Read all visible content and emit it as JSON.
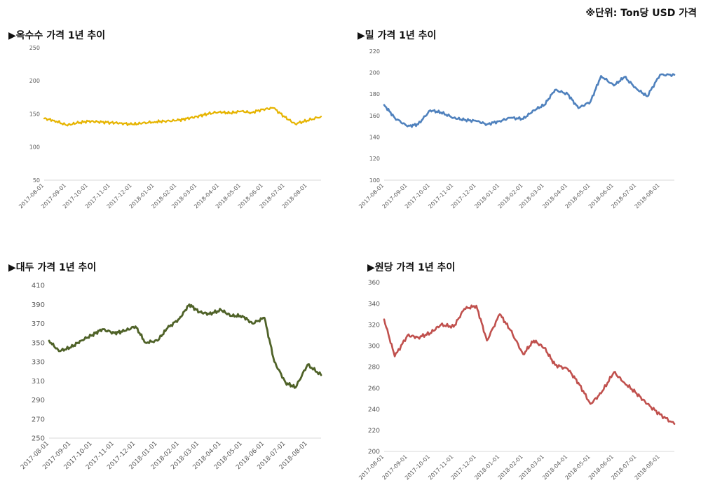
{
  "unit_note": "※단위: Ton당 USD 가격",
  "chart_data": [
    {
      "type": "line",
      "title": "▶옥수수 가격 1년 추이",
      "color": "#e6b400",
      "ylim": [
        50,
        250
      ],
      "yticks": [
        50,
        100,
        150,
        200,
        250
      ],
      "x_start": "2017-08-01",
      "x_end": "2018-08-20",
      "xticks": [
        "2017-08-01",
        "2017-09-01",
        "2017-10-01",
        "2017-11-01",
        "2017-12-01",
        "2018-01-01",
        "2018-02-01",
        "2018-03-01",
        "2018-04-01",
        "2018-05-01",
        "2018-06-01",
        "2018-07-01",
        "2018-08-01"
      ],
      "series": [
        {
          "x": [
            "2017-08-01",
            "2017-08-15",
            "2017-09-01",
            "2017-09-15",
            "2017-10-01",
            "2017-10-15",
            "2017-11-01",
            "2017-11-15",
            "2017-12-01",
            "2017-12-15",
            "2018-01-01",
            "2018-01-15",
            "2018-02-01",
            "2018-02-15",
            "2018-03-01",
            "2018-03-15",
            "2018-04-01",
            "2018-04-15",
            "2018-05-01",
            "2018-05-15",
            "2018-06-01",
            "2018-06-15",
            "2018-07-01",
            "2018-07-15",
            "2018-08-01",
            "2018-08-20"
          ],
          "y": [
            143,
            140,
            133,
            136,
            139,
            138,
            137,
            136,
            134,
            136,
            138,
            139,
            140,
            143,
            146,
            150,
            153,
            151,
            154,
            152,
            157,
            159,
            145,
            135,
            140,
            146
          ]
        }
      ]
    },
    {
      "type": "line",
      "title": "▶밀 가격 1년 추이",
      "color": "#4f81bd",
      "ylim": [
        100,
        220
      ],
      "yticks": [
        100,
        120,
        140,
        160,
        180,
        200,
        220
      ],
      "x_start": "2017-08-01",
      "x_end": "2018-08-20",
      "xticks": [
        "2017-08-01",
        "2017-09-01",
        "2017-10-01",
        "2017-11-01",
        "2017-12-01",
        "2018-01-01",
        "2018-02-01",
        "2018-03-01",
        "2018-04-01",
        "2018-05-01",
        "2018-06-01",
        "2018-07-01",
        "2018-08-01"
      ],
      "series": [
        {
          "x": [
            "2017-08-01",
            "2017-08-15",
            "2017-09-01",
            "2017-09-15",
            "2017-10-01",
            "2017-10-15",
            "2017-11-01",
            "2017-11-15",
            "2017-12-01",
            "2017-12-15",
            "2018-01-01",
            "2018-01-15",
            "2018-02-01",
            "2018-02-15",
            "2018-03-01",
            "2018-03-15",
            "2018-04-01",
            "2018-04-15",
            "2018-05-01",
            "2018-05-15",
            "2018-06-01",
            "2018-06-15",
            "2018-07-01",
            "2018-07-15",
            "2018-08-01",
            "2018-08-20"
          ],
          "y": [
            170,
            158,
            150,
            152,
            165,
            163,
            158,
            156,
            155,
            152,
            155,
            158,
            157,
            165,
            170,
            184,
            180,
            167,
            173,
            197,
            188,
            196,
            185,
            178,
            198,
            198
          ]
        }
      ]
    },
    {
      "type": "line",
      "title": "▶대두 가격 1년 추이",
      "color": "#4f6228",
      "ylim": [
        250,
        410
      ],
      "yticks": [
        250,
        270,
        290,
        310,
        330,
        350,
        370,
        390,
        410
      ],
      "x_start": "2017-08-01",
      "x_end": "2018-08-20",
      "xticks": [
        "2017-08-01",
        "2017-09-01",
        "2017-10-01",
        "2017-11-01",
        "2017-12-01",
        "2018-01-01",
        "2018-02-01",
        "2018-03-01",
        "2018-04-01",
        "2018-05-01",
        "2018-06-01",
        "2018-07-01",
        "2018-08-01"
      ],
      "series": [
        {
          "x": [
            "2017-08-01",
            "2017-08-15",
            "2017-09-01",
            "2017-09-15",
            "2017-10-01",
            "2017-10-15",
            "2017-11-01",
            "2017-11-15",
            "2017-12-01",
            "2017-12-15",
            "2018-01-01",
            "2018-01-15",
            "2018-02-01",
            "2018-02-15",
            "2018-03-01",
            "2018-03-15",
            "2018-04-01",
            "2018-04-15",
            "2018-05-01",
            "2018-05-15",
            "2018-06-01",
            "2018-06-15",
            "2018-07-01",
            "2018-07-15",
            "2018-08-01",
            "2018-08-20"
          ],
          "y": [
            352,
            341,
            345,
            352,
            358,
            364,
            360,
            362,
            367,
            350,
            352,
            365,
            375,
            390,
            382,
            380,
            384,
            378,
            378,
            370,
            376,
            330,
            308,
            303,
            327,
            316
          ]
        }
      ]
    },
    {
      "type": "line",
      "title": "▶원당 가격 1년 추이",
      "color": "#c0504d",
      "ylim": [
        200,
        360
      ],
      "yticks": [
        200,
        220,
        240,
        260,
        280,
        300,
        320,
        340,
        360
      ],
      "x_start": "2017-08-01",
      "x_end": "2018-08-20",
      "xticks": [
        "2017-08-01",
        "2017-09-01",
        "2017-10-01",
        "2017-11-01",
        "2017-12-01",
        "2018-01-01",
        "2018-02-01",
        "2018-03-01",
        "2018-04-01",
        "2018-05-01",
        "2018-06-01",
        "2018-07-01",
        "2018-08-01"
      ],
      "series": [
        {
          "x": [
            "2017-08-01",
            "2017-08-15",
            "2017-09-01",
            "2017-09-15",
            "2017-10-01",
            "2017-10-15",
            "2017-11-01",
            "2017-11-15",
            "2017-12-01",
            "2017-12-15",
            "2018-01-01",
            "2018-01-15",
            "2018-02-01",
            "2018-02-15",
            "2018-03-01",
            "2018-03-15",
            "2018-04-01",
            "2018-04-15",
            "2018-05-01",
            "2018-05-15",
            "2018-06-01",
            "2018-06-15",
            "2018-07-01",
            "2018-07-15",
            "2018-08-01",
            "2018-08-20"
          ],
          "y": [
            325,
            290,
            310,
            308,
            312,
            320,
            318,
            335,
            338,
            305,
            330,
            315,
            292,
            305,
            298,
            282,
            278,
            265,
            245,
            255,
            275,
            265,
            255,
            245,
            235,
            226
          ]
        }
      ]
    }
  ]
}
